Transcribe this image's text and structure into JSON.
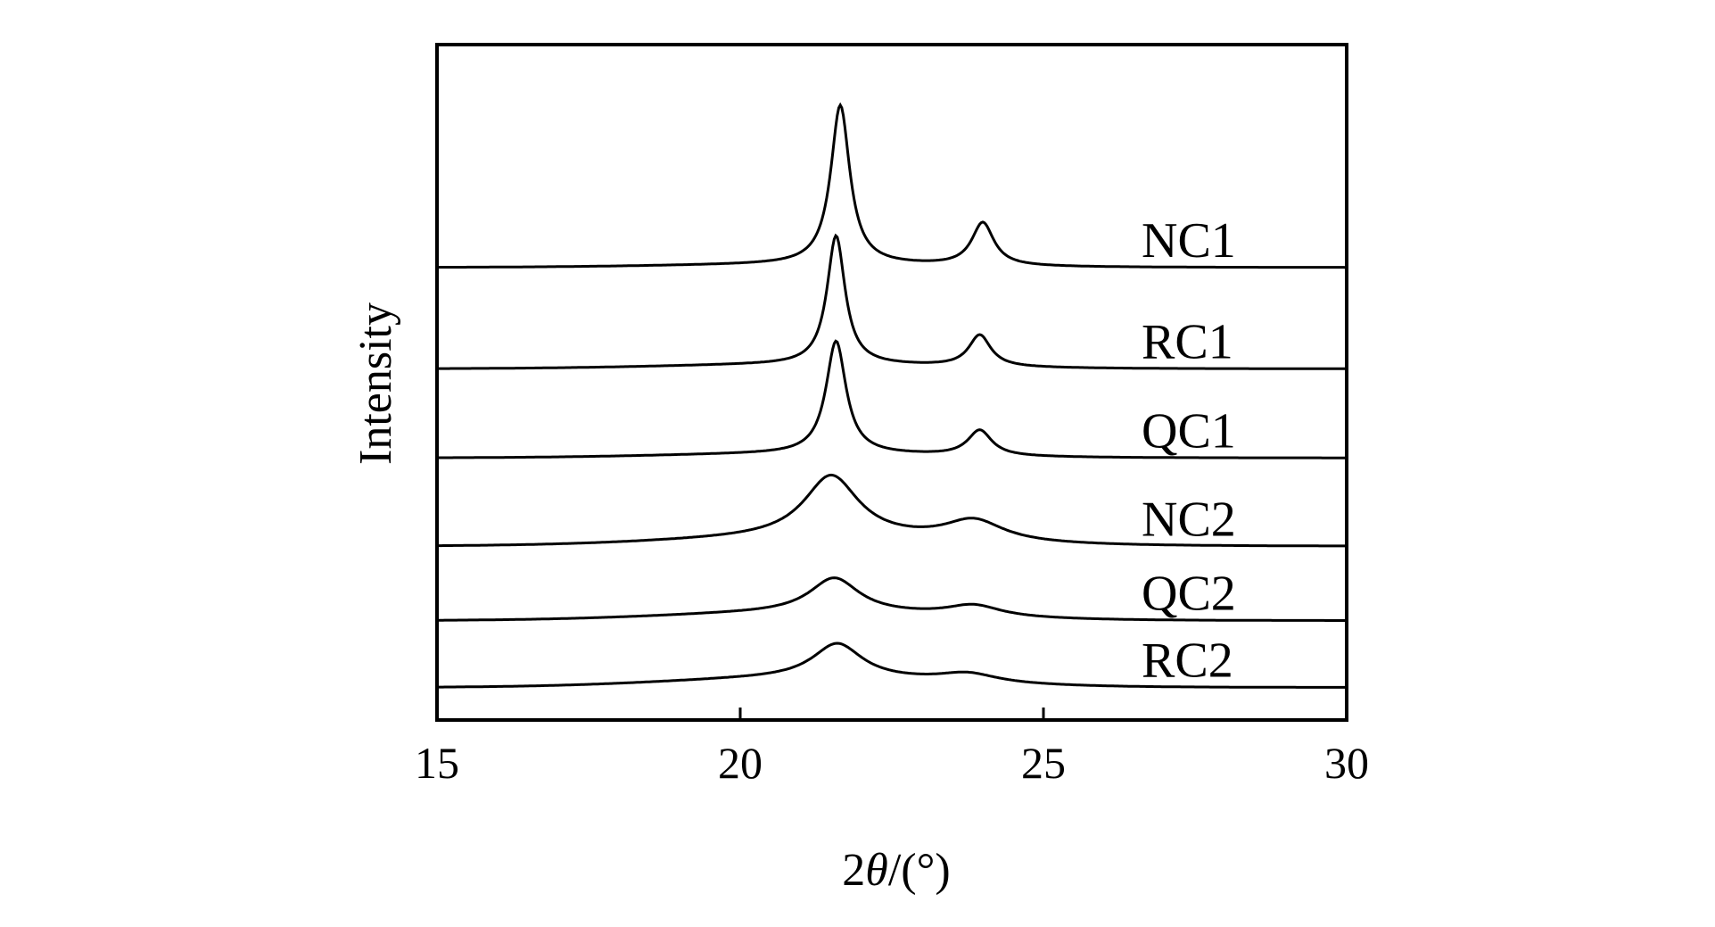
{
  "chart_data": {
    "type": "line",
    "title": "",
    "xlabel_prefix": "2",
    "xlabel_symbol": "θ",
    "xlabel_suffix": "/(°)",
    "ylabel": "Intensity",
    "xlim": [
      15,
      30
    ],
    "ylim": [
      0,
      100
    ],
    "y_ticks_shown": false,
    "x_ticks": [
      "15",
      "20",
      "25",
      "30"
    ],
    "grid": false,
    "legend": "none; series labelled inline at right",
    "colors": {
      "line": "#000000",
      "frame": "#000000",
      "background": "#ffffff"
    },
    "series": [
      {
        "name": "NC1",
        "baseline": 67,
        "tilt": 0.4,
        "peaks": [
          {
            "center": 21.65,
            "height": 23.6,
            "width": 0.19
          },
          {
            "center": 24.0,
            "height": 6.4,
            "width": 0.22
          }
        ]
      },
      {
        "name": "RC1",
        "baseline": 52,
        "tilt": 0.6,
        "peaks": [
          {
            "center": 21.58,
            "height": 19.1,
            "width": 0.18
          },
          {
            "center": 23.95,
            "height": 4.7,
            "width": 0.22
          }
        ]
      },
      {
        "name": "QC1",
        "baseline": 38.8,
        "tilt": 0.6,
        "peaks": [
          {
            "center": 21.58,
            "height": 16.7,
            "width": 0.2
          },
          {
            "center": 23.95,
            "height": 3.8,
            "width": 0.24
          }
        ]
      },
      {
        "name": "NC2",
        "baseline": 25.7,
        "tilt": 1.1,
        "peaks": [
          {
            "center": 21.5,
            "height": 9.3,
            "width": 0.55
          },
          {
            "center": 23.85,
            "height": 3.2,
            "width": 0.6
          }
        ]
      },
      {
        "name": "QC2",
        "baseline": 14.7,
        "tilt": 1.1,
        "peaks": [
          {
            "center": 21.55,
            "height": 5.2,
            "width": 0.5
          },
          {
            "center": 23.85,
            "height": 1.7,
            "width": 0.55
          }
        ]
      },
      {
        "name": "RC2",
        "baseline": 4.8,
        "tilt": 1.3,
        "peaks": [
          {
            "center": 21.6,
            "height": 5.2,
            "width": 0.5
          },
          {
            "center": 23.75,
            "height": 1.4,
            "width": 0.6
          }
        ]
      }
    ]
  }
}
